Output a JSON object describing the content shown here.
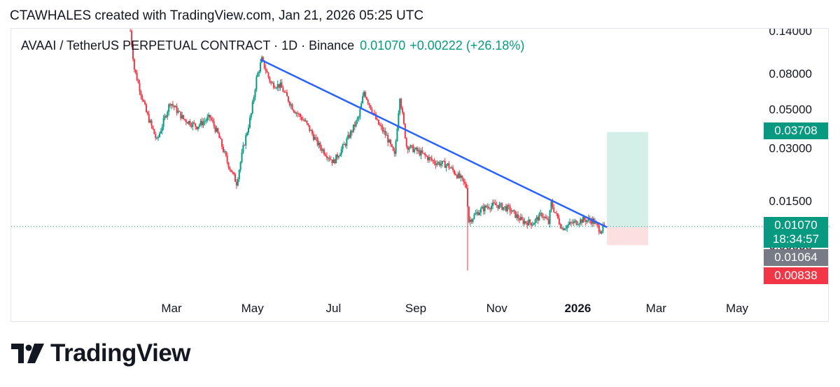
{
  "header": {
    "text": "CTAWHALES created with TradingView.com, Jan 21, 2026 05:25 UTC"
  },
  "symbol": {
    "name": "AVAAI / TetherUS PERPETUAL CONTRACT · 1D · Binance",
    "last": "0.01070",
    "change": "+0.00222 (+26.18%)"
  },
  "price_tags": {
    "target": {
      "label": "0.03708",
      "color": "#089981"
    },
    "last": {
      "label": "0.01070",
      "color": "#089981"
    },
    "countdown": {
      "label": "18:34:57",
      "color": "#089981"
    },
    "entry": {
      "label": "0.01064",
      "color": "#787b86"
    },
    "stop": {
      "label": "0.00838",
      "color": "#f23645"
    }
  },
  "logo": {
    "text": "TradingView"
  },
  "colors": {
    "up": "#089981",
    "down": "#f23645",
    "trendline": "#2962ff",
    "profit_zone": "#d4efe8",
    "loss_zone": "#fbe0e2"
  },
  "chart_data": {
    "type": "candlestick",
    "title": "AVAAI / TetherUS PERPETUAL CONTRACT · 1D · Binance",
    "y_scale": "log",
    "y_ticks": [
      "0.14000",
      "0.08000",
      "0.05000",
      "0.03000",
      "0.01500",
      "0.00838"
    ],
    "y_tick_values": [
      0.14,
      0.08,
      0.05,
      0.03,
      0.015,
      0.00838
    ],
    "x_ticks": [
      "Mar",
      "May",
      "Jul",
      "Sep",
      "Nov",
      "2026",
      "Mar",
      "May"
    ],
    "x_tick_dates": [
      "2025-03-01",
      "2025-05-01",
      "2025-07-01",
      "2025-09-01",
      "2025-11-01",
      "2026-01-01",
      "2026-03-01",
      "2026-05-01"
    ],
    "price_path": [
      [
        "2025-01-29",
        0.14
      ],
      [
        "2025-02-01",
        0.085
      ],
      [
        "2025-02-10",
        0.048
      ],
      [
        "2025-02-18",
        0.033
      ],
      [
        "2025-02-28",
        0.055
      ],
      [
        "2025-03-10",
        0.044
      ],
      [
        "2025-03-20",
        0.04
      ],
      [
        "2025-03-30",
        0.045
      ],
      [
        "2025-04-05",
        0.036
      ],
      [
        "2025-04-12",
        0.025
      ],
      [
        "2025-04-19",
        0.019
      ],
      [
        "2025-04-24",
        0.03
      ],
      [
        "2025-04-30",
        0.047
      ],
      [
        "2025-05-04",
        0.075
      ],
      [
        "2025-05-08",
        0.096
      ],
      [
        "2025-05-15",
        0.07
      ],
      [
        "2025-05-22",
        0.068
      ],
      [
        "2025-06-01",
        0.05
      ],
      [
        "2025-06-10",
        0.042
      ],
      [
        "2025-06-20",
        0.031
      ],
      [
        "2025-07-01",
        0.025
      ],
      [
        "2025-07-10",
        0.032
      ],
      [
        "2025-07-20",
        0.045
      ],
      [
        "2025-07-24",
        0.063
      ],
      [
        "2025-08-03",
        0.042
      ],
      [
        "2025-08-10",
        0.035
      ],
      [
        "2025-08-16",
        0.027
      ],
      [
        "2025-08-20",
        0.06
      ],
      [
        "2025-08-25",
        0.031
      ],
      [
        "2025-09-05",
        0.028
      ],
      [
        "2025-09-15",
        0.025
      ],
      [
        "2025-09-25",
        0.024
      ],
      [
        "2025-10-05",
        0.02
      ],
      [
        "2025-10-09",
        0.018
      ],
      [
        "2025-10-11",
        0.0115
      ],
      [
        "2025-10-18",
        0.013
      ],
      [
        "2025-10-25",
        0.014
      ],
      [
        "2025-11-01",
        0.0142
      ],
      [
        "2025-11-10",
        0.0135
      ],
      [
        "2025-11-20",
        0.0115
      ],
      [
        "2025-11-28",
        0.0112
      ],
      [
        "2025-12-05",
        0.0126
      ],
      [
        "2025-12-10",
        0.0112
      ],
      [
        "2025-12-12",
        0.0145
      ],
      [
        "2025-12-20",
        0.0105
      ],
      [
        "2025-12-28",
        0.0112
      ],
      [
        "2026-01-05",
        0.0117
      ],
      [
        "2026-01-12",
        0.0116
      ],
      [
        "2026-01-18",
        0.0102
      ],
      [
        "2026-01-21",
        0.0107
      ]
    ],
    "trendline": {
      "start": [
        "2025-05-07",
        0.096
      ],
      "end": [
        "2026-01-23",
        0.0106
      ]
    },
    "long_position": {
      "start": "2026-01-23",
      "end": "2026-02-23",
      "entry": 0.01064,
      "target": 0.03708,
      "stop": 0.00838
    },
    "last_price": 0.0107
  }
}
